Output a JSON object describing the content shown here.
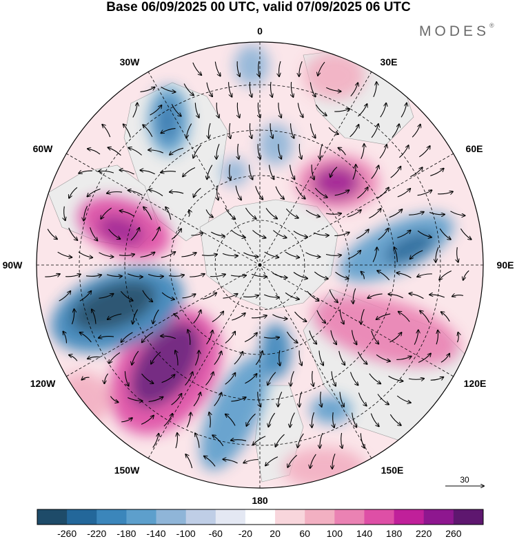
{
  "title": "Base 06/09/2025 00 UTC, valid 07/09/2025 06 UTC",
  "brand": {
    "name": "MODES",
    "mark": "®"
  },
  "longitude_labels": {
    "lon_0": "0",
    "lon_30e": "30E",
    "lon_60e": "60E",
    "lon_90e": "90E",
    "lon_120e": "120E",
    "lon_150e": "150E",
    "lon_180": "180",
    "lon_150w": "150W",
    "lon_120w": "120W",
    "lon_90w": "90W",
    "lon_60w": "60W",
    "lon_30w": "30W"
  },
  "vector_reference": {
    "label": "30"
  },
  "colorbar": {
    "labels": [
      "-260",
      "-220",
      "-180",
      "-140",
      "-100",
      "-60",
      "-20",
      "20",
      "60",
      "100",
      "140",
      "180",
      "220",
      "260"
    ],
    "colors": [
      "#1e4b69",
      "#23679a",
      "#3b86bb",
      "#5d9fcc",
      "#8fb5d8",
      "#bfcee6",
      "#e4e8f3",
      "#ffffff",
      "#f8d6dc",
      "#f2b0c2",
      "#ea82b3",
      "#de4fa6",
      "#c0209a",
      "#8e178f",
      "#5e176f"
    ]
  },
  "colors": {
    "land": "#ececec",
    "grid": "#000000"
  }
}
